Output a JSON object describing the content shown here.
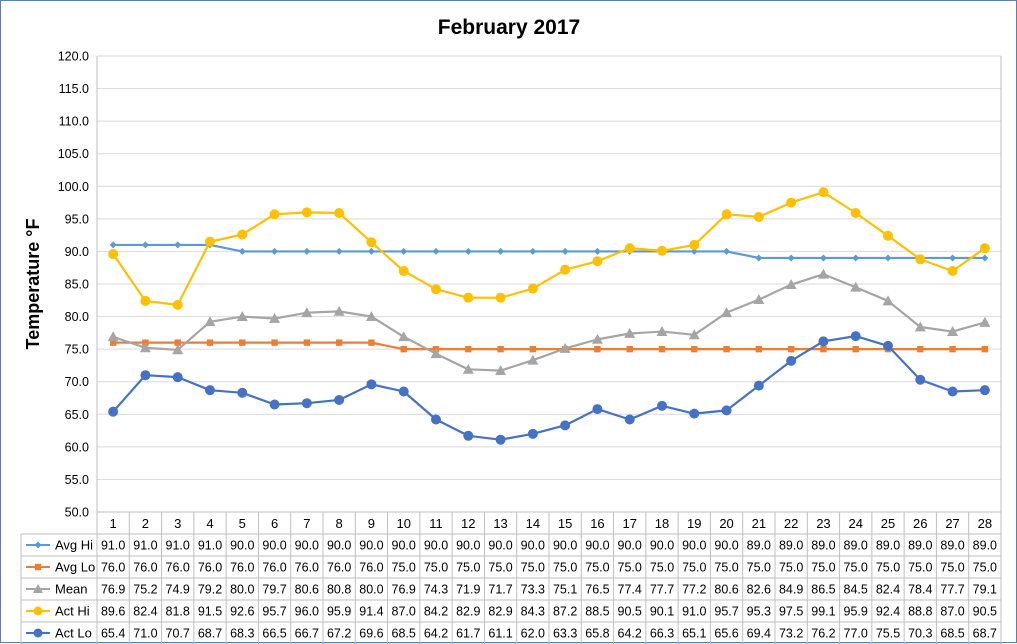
{
  "chart_data": {
    "type": "line",
    "title": "February 2017",
    "ylabel": "Temperature °F",
    "xlabel": "",
    "ylim": [
      50,
      120
    ],
    "yticks": [
      50,
      55,
      60,
      65,
      70,
      75,
      80,
      85,
      90,
      95,
      100,
      105,
      110,
      115,
      120
    ],
    "ytick_labels": [
      "50.0",
      "55.0",
      "60.0",
      "65.0",
      "70.0",
      "75.0",
      "80.0",
      "85.0",
      "90.0",
      "95.0",
      "100.0",
      "105.0",
      "110.0",
      "115.0",
      "120.0"
    ],
    "grid": true,
    "legend": "data-table-below",
    "categories": [
      "1",
      "2",
      "3",
      "4",
      "5",
      "6",
      "7",
      "8",
      "9",
      "10",
      "11",
      "12",
      "13",
      "14",
      "15",
      "16",
      "17",
      "18",
      "19",
      "20",
      "21",
      "22",
      "23",
      "24",
      "25",
      "26",
      "27",
      "28"
    ],
    "series": [
      {
        "name": "Avg Hi",
        "color": "#5b9bd5",
        "marker": "diamond",
        "values": [
          91.0,
          91.0,
          91.0,
          91.0,
          90.0,
          90.0,
          90.0,
          90.0,
          90.0,
          90.0,
          90.0,
          90.0,
          90.0,
          90.0,
          90.0,
          90.0,
          90.0,
          90.0,
          90.0,
          90.0,
          89.0,
          89.0,
          89.0,
          89.0,
          89.0,
          89.0,
          89.0,
          89.0
        ],
        "labels": [
          "91.0",
          "91.0",
          "91.0",
          "91.0",
          "90.0",
          "90.0",
          "90.0",
          "90.0",
          "90.0",
          "90.0",
          "90.0",
          "90.0",
          "90.0",
          "90.0",
          "90.0",
          "90.0",
          "90.0",
          "90.0",
          "90.0",
          "90.0",
          "89.0",
          "89.0",
          "89.0",
          "89.0",
          "89.0",
          "89.0",
          "89.0",
          "89.0"
        ]
      },
      {
        "name": "Avg Lo",
        "color": "#ed7d31",
        "marker": "square",
        "values": [
          76.0,
          76.0,
          76.0,
          76.0,
          76.0,
          76.0,
          76.0,
          76.0,
          76.0,
          75.0,
          75.0,
          75.0,
          75.0,
          75.0,
          75.0,
          75.0,
          75.0,
          75.0,
          75.0,
          75.0,
          75.0,
          75.0,
          75.0,
          75.0,
          75.0,
          75.0,
          75.0,
          75.0
        ],
        "labels": [
          "76.0",
          "76.0",
          "76.0",
          "76.0",
          "76.0",
          "76.0",
          "76.0",
          "76.0",
          "76.0",
          "75.0",
          "75.0",
          "75.0",
          "75.0",
          "75.0",
          "75.0",
          "75.0",
          "75.0",
          "75.0",
          "75.0",
          "75.0",
          "75.0",
          "75.0",
          "75.0",
          "75.0",
          "75.0",
          "75.0",
          "75.0",
          "75.0"
        ]
      },
      {
        "name": "Mean",
        "color": "#a5a5a5",
        "marker": "triangle",
        "values": [
          76.9,
          75.2,
          74.9,
          79.2,
          80.0,
          79.7,
          80.6,
          80.8,
          80.0,
          76.9,
          74.3,
          71.9,
          71.7,
          73.3,
          75.1,
          76.5,
          77.4,
          77.7,
          77.2,
          80.6,
          82.6,
          84.9,
          86.5,
          84.5,
          82.4,
          78.4,
          77.7,
          79.1
        ],
        "labels": [
          "76.9",
          "75.2",
          "74.9",
          "79.2",
          "80.0",
          "79.7",
          "80.6",
          "80.8",
          "80.0",
          "76.9",
          "74.3",
          "71.9",
          "71.7",
          "73.3",
          "75.1",
          "76.5",
          "77.4",
          "77.7",
          "77.2",
          "80.6",
          "82.6",
          "84.9",
          "86.5",
          "84.5",
          "82.4",
          "78.4",
          "77.7",
          "79.1"
        ]
      },
      {
        "name": "Act Hi",
        "color": "#ffc000",
        "marker": "circle",
        "values": [
          89.6,
          82.4,
          81.8,
          91.5,
          92.6,
          95.7,
          96.0,
          95.9,
          91.4,
          87.0,
          84.2,
          82.9,
          82.9,
          84.3,
          87.2,
          88.5,
          90.5,
          90.1,
          91.0,
          95.7,
          95.3,
          97.5,
          99.1,
          95.9,
          92.4,
          88.8,
          87.0,
          90.5
        ],
        "labels": [
          "89.6",
          "82.4",
          "81.8",
          "91.5",
          "92.6",
          "95.7",
          "96.0",
          "95.9",
          "91.4",
          "87.0",
          "84.2",
          "82.9",
          "82.9",
          "84.3",
          "87.2",
          "88.5",
          "90.5",
          "90.1",
          "91.0",
          "95.7",
          "95.3",
          "97.5",
          "99.1",
          "95.9",
          "92.4",
          "88.8",
          "87.0",
          "90.5"
        ]
      },
      {
        "name": "Act Lo",
        "color": "#4472c4",
        "marker": "circle",
        "values": [
          65.4,
          71.0,
          70.7,
          68.7,
          68.3,
          66.5,
          66.7,
          67.2,
          69.6,
          68.5,
          64.2,
          61.7,
          61.1,
          62.0,
          63.3,
          65.8,
          64.2,
          66.3,
          65.1,
          65.6,
          69.4,
          73.2,
          76.2,
          77.0,
          75.5,
          70.3,
          68.5,
          68.7
        ],
        "labels": [
          "65.4",
          "71.0",
          "70.7",
          "68.7",
          "68.3",
          "66.5",
          "66.7",
          "67.2",
          "69.6",
          "68.5",
          "64.2",
          "61.7",
          "61.1",
          "62.0",
          "63.3",
          "65.8",
          "64.2",
          "66.3",
          "65.1",
          "65.6",
          "69.4",
          "73.2",
          "76.2",
          "77.0",
          "75.5",
          "70.3",
          "68.5",
          "68.7"
        ]
      }
    ]
  }
}
